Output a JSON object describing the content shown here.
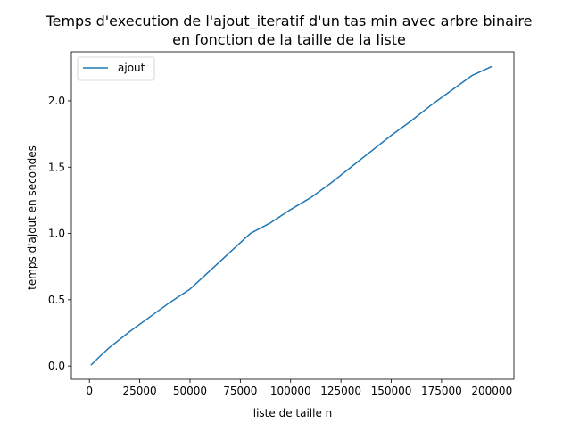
{
  "chart_data": {
    "type": "line",
    "title": "Temps d'execution de l'ajout_iteratif d'un tas min avec arbre binaire\nen fonction de la taille de la liste",
    "title_lines": [
      "Temps d'execution de l'ajout_iteratif d'un tas min avec arbre binaire",
      "en fonction de la taille de la liste"
    ],
    "xlabel": "liste de taille n",
    "ylabel": "temps d'ajout en secondes",
    "xlim": [
      -8950,
      210950
    ],
    "ylim": [
      -0.1,
      2.37
    ],
    "x_ticks": [
      0,
      25000,
      50000,
      75000,
      100000,
      125000,
      150000,
      175000,
      200000
    ],
    "x_tick_labels": [
      "0",
      "25000",
      "50000",
      "75000",
      "100000",
      "125000",
      "150000",
      "175000",
      "200000"
    ],
    "y_ticks": [
      0.0,
      0.5,
      1.0,
      1.5,
      2.0
    ],
    "y_tick_labels": [
      "0.0",
      "0.5",
      "1.0",
      "1.5",
      "2.0"
    ],
    "grid": false,
    "legend_position": "upper-left",
    "series": [
      {
        "name": "ajout",
        "color": "#1f77b4",
        "x": [
          1000,
          5000,
          10000,
          20000,
          30000,
          40000,
          50000,
          60000,
          70000,
          80000,
          90000,
          100000,
          110000,
          120000,
          130000,
          140000,
          150000,
          160000,
          170000,
          180000,
          190000,
          200000
        ],
        "y": [
          0.01,
          0.07,
          0.14,
          0.26,
          0.37,
          0.48,
          0.58,
          0.72,
          0.86,
          1.0,
          1.08,
          1.18,
          1.27,
          1.38,
          1.5,
          1.62,
          1.74,
          1.85,
          1.97,
          2.08,
          2.19,
          2.26
        ]
      }
    ]
  }
}
